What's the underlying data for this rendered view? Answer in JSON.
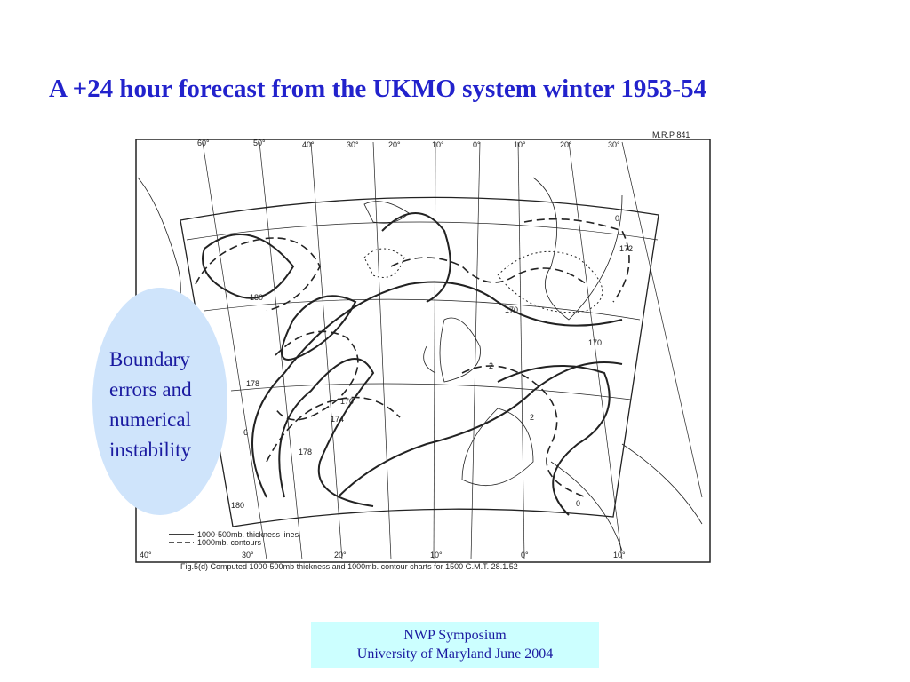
{
  "title": "A +24 hour forecast from the UKMO system winter 1953-54",
  "map": {
    "reference": "M.R.P 841",
    "top_longitudes": [
      "60°",
      "50°",
      "40°",
      "30°",
      "20°",
      "10°",
      "0°",
      "10°",
      "20°",
      "30°"
    ],
    "bottom_longitudes": [
      "40°",
      "30°",
      "20°",
      "10°",
      "0°",
      "10°"
    ],
    "contour_labels": [
      "180",
      "178",
      "170",
      "174",
      "178",
      "6",
      "2",
      "170",
      "170",
      "172",
      "0",
      "0",
      "180",
      "2"
    ],
    "legend": [
      "1000-500mb. thickness lines",
      "1000mb. contours"
    ],
    "caption": "Fig.5(d)  Computed 1000-500mb thickness and 1000mb. contour charts for 1500 G.M.T. 28.1.52"
  },
  "callout": [
    "Boundary",
    "errors and",
    "numerical",
    "instability"
  ],
  "footer": [
    "NWP Symposium",
    "University of Maryland June 2004"
  ]
}
